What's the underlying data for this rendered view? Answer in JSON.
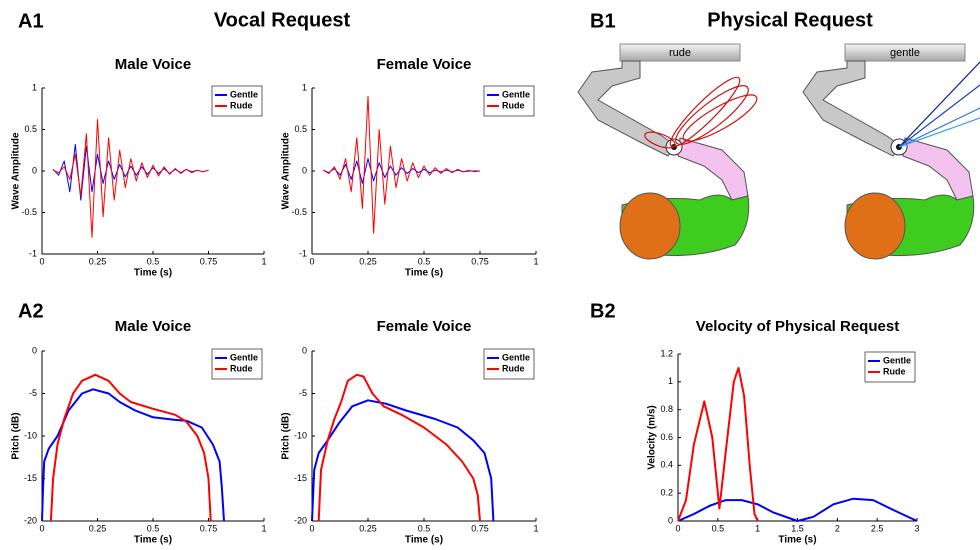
{
  "figure": {
    "panel_labels": [
      "A1",
      "A2",
      "B1",
      "B2"
    ],
    "headings": [
      "Vocal Request",
      "Physical Request"
    ]
  },
  "illustration": {
    "buttons": [
      "rude",
      "gentle"
    ]
  },
  "chart_data": [
    {
      "type": "line",
      "title": "Male Voice",
      "xlabel": "Time (s)",
      "ylabel": "Wave Amplitude",
      "xlim": [
        0,
        1
      ],
      "xticks": [
        0,
        0.25,
        0.5,
        0.75,
        1
      ],
      "ylim": [
        -1,
        1
      ],
      "yticks": [
        -1,
        -0.5,
        0,
        0.5,
        1
      ],
      "legend": "top right",
      "x": [
        0.05,
        0.075,
        0.1,
        0.125,
        0.15,
        0.175,
        0.2,
        0.225,
        0.25,
        0.275,
        0.3,
        0.325,
        0.35,
        0.375,
        0.4,
        0.425,
        0.45,
        0.475,
        0.5,
        0.525,
        0.55,
        0.575,
        0.6,
        0.625,
        0.65,
        0.675,
        0.7,
        0.725,
        0.75
      ],
      "series": [
        {
          "name": "Gentle",
          "color": "#0000ff",
          "values": [
            0.02,
            -0.05,
            0.12,
            -0.25,
            0.32,
            -0.35,
            0.3,
            -0.25,
            0.2,
            -0.15,
            0.12,
            -0.1,
            0.08,
            -0.07,
            0.06,
            -0.05,
            0.05,
            -0.04,
            0.04,
            -0.03,
            0.03,
            -0.03,
            0.02,
            -0.02,
            0.02,
            -0.01,
            0.01,
            -0.01,
            0.01
          ]
        },
        {
          "name": "Rude",
          "color": "#ff0000",
          "values": [
            0.01,
            -0.02,
            0.05,
            -0.1,
            0.2,
            -0.3,
            0.45,
            -0.8,
            0.62,
            -0.55,
            0.4,
            -0.35,
            0.25,
            -0.2,
            0.15,
            -0.12,
            0.1,
            -0.08,
            0.07,
            -0.06,
            0.05,
            -0.04,
            0.03,
            -0.03,
            0.02,
            -0.02,
            0.01,
            -0.01,
            0.01
          ]
        }
      ]
    },
    {
      "type": "line",
      "title": "Female Voice",
      "xlabel": "Time (s)",
      "ylabel": "Wave Amplitude",
      "xlim": [
        0,
        1
      ],
      "xticks": [
        0,
        0.25,
        0.5,
        0.75,
        1
      ],
      "ylim": [
        -1,
        1
      ],
      "yticks": [
        -1,
        -0.5,
        0,
        0.5,
        1
      ],
      "legend": "top right",
      "x": [
        0.05,
        0.075,
        0.1,
        0.125,
        0.15,
        0.175,
        0.2,
        0.225,
        0.25,
        0.275,
        0.3,
        0.325,
        0.35,
        0.375,
        0.4,
        0.425,
        0.45,
        0.475,
        0.5,
        0.525,
        0.55,
        0.575,
        0.6,
        0.625,
        0.65,
        0.675,
        0.7,
        0.725,
        0.75
      ],
      "series": [
        {
          "name": "Gentle",
          "color": "#0000ff",
          "values": [
            0.01,
            -0.02,
            0.03,
            -0.05,
            0.08,
            -0.1,
            0.12,
            -0.15,
            0.15,
            -0.12,
            0.1,
            -0.08,
            0.06,
            -0.05,
            0.04,
            -0.03,
            0.03,
            -0.02,
            0.02,
            -0.02,
            0.01,
            -0.01,
            0.01,
            -0.01,
            0.01,
            -0.01,
            0,
            0,
            0
          ]
        },
        {
          "name": "Rude",
          "color": "#ff0000",
          "values": [
            0.01,
            -0.03,
            0.05,
            -0.1,
            0.15,
            -0.25,
            0.4,
            -0.45,
            0.9,
            -0.75,
            0.5,
            -0.4,
            0.3,
            -0.2,
            0.15,
            -0.12,
            0.1,
            -0.08,
            0.06,
            -0.05,
            0.04,
            -0.03,
            0.03,
            -0.02,
            0.02,
            -0.01,
            0.01,
            -0.01,
            0
          ]
        }
      ]
    },
    {
      "type": "line",
      "title": "Male Voice",
      "xlabel": "Time (s)",
      "ylabel": "Pitch (dB)",
      "xlim": [
        0,
        1
      ],
      "xticks": [
        0,
        0.25,
        0.5,
        0.75,
        1
      ],
      "ylim": [
        -20,
        0
      ],
      "yticks": [
        -20,
        -15,
        -10,
        -5,
        0
      ],
      "legend": "top right",
      "series": [
        {
          "name": "Gentle",
          "color": "#0000ff",
          "x": [
            0,
            0.005,
            0.01,
            0.03,
            0.07,
            0.12,
            0.18,
            0.23,
            0.3,
            0.35,
            0.42,
            0.5,
            0.6,
            0.65,
            0.72,
            0.77,
            0.8,
            0.81,
            0.82
          ],
          "values": [
            -20,
            -16,
            -13,
            -11.5,
            -10,
            -7,
            -5,
            -4.5,
            -5,
            -6,
            -7,
            -7.8,
            -8.1,
            -8.2,
            -9,
            -11,
            -13,
            -16,
            -20
          ]
        },
        {
          "name": "Rude",
          "color": "#ff0000",
          "x": [
            0.04,
            0.05,
            0.07,
            0.1,
            0.14,
            0.18,
            0.24,
            0.3,
            0.35,
            0.4,
            0.5,
            0.6,
            0.65,
            0.7,
            0.73,
            0.75,
            0.76
          ],
          "values": [
            -20,
            -15,
            -11,
            -8,
            -5,
            -3.5,
            -2.8,
            -3.5,
            -5,
            -6,
            -6.8,
            -7.5,
            -8.3,
            -10,
            -12,
            -15,
            -20
          ]
        }
      ]
    },
    {
      "type": "line",
      "title": "Female Voice",
      "xlabel": "Time (s)",
      "ylabel": "Pitch (dB)",
      "xlim": [
        0,
        1
      ],
      "xticks": [
        0,
        0.25,
        0.5,
        0.75,
        1
      ],
      "ylim": [
        -20,
        0
      ],
      "yticks": [
        -20,
        -15,
        -10,
        -5,
        0
      ],
      "legend": "top right",
      "series": [
        {
          "name": "Gentle",
          "color": "#0000ff",
          "x": [
            0,
            0.01,
            0.03,
            0.07,
            0.12,
            0.18,
            0.25,
            0.33,
            0.42,
            0.55,
            0.65,
            0.72,
            0.77,
            0.8,
            0.81
          ],
          "values": [
            -20,
            -14,
            -12,
            -10.5,
            -8.5,
            -6.5,
            -5.8,
            -6.2,
            -7,
            -8,
            -9,
            -10.5,
            -12,
            -15,
            -20
          ]
        },
        {
          "name": "Rude",
          "color": "#ff0000",
          "x": [
            0.03,
            0.04,
            0.07,
            0.1,
            0.13,
            0.16,
            0.2,
            0.23,
            0.27,
            0.32,
            0.4,
            0.5,
            0.6,
            0.67,
            0.72,
            0.74,
            0.75
          ],
          "values": [
            -20,
            -14,
            -10.5,
            -8,
            -6,
            -3.5,
            -2.8,
            -3,
            -5,
            -6.5,
            -7.5,
            -9,
            -11,
            -13,
            -15,
            -17,
            -20
          ]
        }
      ]
    },
    {
      "type": "line",
      "title": "Velocity of Physical Request",
      "xlabel": "Time (s)",
      "ylabel": "Velocity (m/s)",
      "xlim": [
        0,
        3
      ],
      "xticks": [
        0,
        0.5,
        1,
        1.5,
        2,
        2.5,
        3
      ],
      "ylim": [
        0,
        1.2
      ],
      "yticks": [
        0,
        0.2,
        0.4,
        0.6,
        0.8,
        1,
        1.2
      ],
      "legend": "top right",
      "series": [
        {
          "name": "Gentle",
          "color": "#0000ff",
          "x": [
            0,
            0.2,
            0.4,
            0.6,
            0.8,
            1,
            1.2,
            1.5,
            1.7,
            1.95,
            2.2,
            2.45,
            2.7,
            3
          ],
          "values": [
            0,
            0.05,
            0.11,
            0.15,
            0.15,
            0.12,
            0.06,
            0,
            0.03,
            0.12,
            0.16,
            0.15,
            0.08,
            0
          ]
        },
        {
          "name": "Rude",
          "color": "#ff0000",
          "x": [
            0,
            0.1,
            0.2,
            0.33,
            0.43,
            0.52,
            0.6,
            0.7,
            0.76,
            0.83,
            0.9,
            0.96,
            1
          ],
          "values": [
            0,
            0.15,
            0.55,
            0.86,
            0.6,
            0.09,
            0.5,
            1,
            1.1,
            0.9,
            0.4,
            0.05,
            0
          ]
        }
      ]
    }
  ]
}
